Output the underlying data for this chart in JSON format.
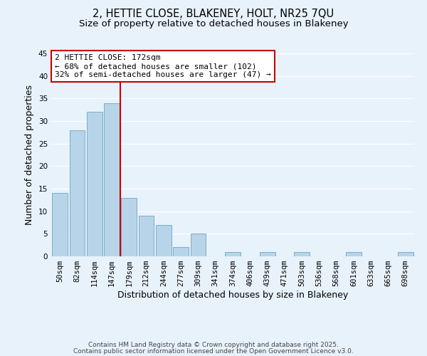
{
  "title": "2, HETTIE CLOSE, BLAKENEY, HOLT, NR25 7QU",
  "subtitle": "Size of property relative to detached houses in Blakeney",
  "xlabel": "Distribution of detached houses by size in Blakeney",
  "ylabel": "Number of detached properties",
  "bar_labels": [
    "50sqm",
    "82sqm",
    "114sqm",
    "147sqm",
    "179sqm",
    "212sqm",
    "244sqm",
    "277sqm",
    "309sqm",
    "341sqm",
    "374sqm",
    "406sqm",
    "439sqm",
    "471sqm",
    "503sqm",
    "536sqm",
    "568sqm",
    "601sqm",
    "633sqm",
    "665sqm",
    "698sqm"
  ],
  "bar_values": [
    14,
    28,
    32,
    34,
    13,
    9,
    7,
    2,
    5,
    0,
    1,
    0,
    1,
    0,
    1,
    0,
    0,
    1,
    0,
    0,
    1
  ],
  "bar_color": "#b8d4e8",
  "bar_edge_color": "#7aafc8",
  "vline_color": "#cc0000",
  "annotation_title": "2 HETTIE CLOSE: 172sqm",
  "annotation_line1": "← 68% of detached houses are smaller (102)",
  "annotation_line2": "32% of semi-detached houses are larger (47) →",
  "annotation_box_color": "#ffffff",
  "annotation_box_edge": "#cc0000",
  "ylim": [
    0,
    45
  ],
  "yticks": [
    0,
    5,
    10,
    15,
    20,
    25,
    30,
    35,
    40,
    45
  ],
  "footer1": "Contains HM Land Registry data © Crown copyright and database right 2025.",
  "footer2": "Contains public sector information licensed under the Open Government Licence v3.0.",
  "bg_color": "#e8f2fb",
  "grid_color": "#ffffff",
  "title_fontsize": 10.5,
  "subtitle_fontsize": 9.5,
  "tick_fontsize": 7.5,
  "label_fontsize": 9,
  "annotation_fontsize": 8,
  "footer_fontsize": 6.5
}
